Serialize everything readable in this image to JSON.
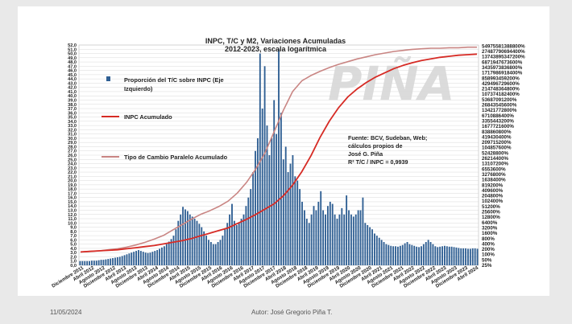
{
  "footer": {
    "date": "11/05/2024",
    "author": "Autor: José Gregorio Piña T."
  },
  "watermark": "PIÑA",
  "colors": {
    "bars": "#2f5f93",
    "inpc": "#d62b25",
    "parallel": "#c98583",
    "grid": "#cfcfcf",
    "watermark": "#d8d8d8"
  },
  "chart_data": {
    "type": "bar",
    "title": "INPC, T/C y M2, Variaciones Acumuladas",
    "subtitle": "2012-2023, escala logarítmica",
    "left_axis": {
      "min": 0,
      "max": 52,
      "step": 1,
      "tick_labels": [
        "0,0",
        "1,0",
        "2,0",
        "3,0",
        "4,0",
        "5,0",
        "6,0",
        "7,0",
        "8,0",
        "9,0",
        "10,0",
        "11,0",
        "12,0",
        "13,0",
        "14,0",
        "15,0",
        "16,0",
        "17,0",
        "18,0",
        "19,0",
        "20,0",
        "21,0",
        "22,0",
        "23,0",
        "24,0",
        "25,0",
        "26,0",
        "27,0",
        "28,0",
        "29,0",
        "30,0",
        "31,0",
        "32,0",
        "33,0",
        "34,0",
        "35,0",
        "36,0",
        "37,0",
        "38,0",
        "39,0",
        "40,0",
        "41,0",
        "42,0",
        "43,0",
        "44,0",
        "45,0",
        "46,0",
        "47,0",
        "48,0",
        "49,0",
        "50,0",
        "51,0",
        "52,0"
      ]
    },
    "right_axis": {
      "scale": "log2",
      "tick_labels": [
        "25%",
        "50%",
        "100%",
        "200%",
        "400%",
        "800%",
        "1600%",
        "3200%",
        "6400%",
        "12800%",
        "25600%",
        "51200%",
        "102400%",
        "204800%",
        "409600%",
        "819200%",
        "1638400%",
        "3276800%",
        "6553600%",
        "13107200%",
        "26214400%",
        "52428800%",
        "104857600%",
        "209715200%",
        "419430400%",
        "838860800%",
        "1677721600%",
        "3355443200%",
        "6710886400%",
        "13421772800%",
        "26843545600%",
        "53687091200%",
        "107374182400%",
        "214748364800%",
        "429496729600%",
        "858993459200%",
        "1717986918400%",
        "3435973836800%",
        "6871947673600%",
        "13743895347200%",
        "27487790694400%",
        "54975581388800%"
      ]
    },
    "x_labels": [
      "Diciembre 2011",
      "Abril 2012",
      "Agosto 2012",
      "Diciembre 2012",
      "Abril 2013",
      "Agosto 2013",
      "Diciembre 2013",
      "Abril 2014",
      "Agosto 2014",
      "Diciembre 2014",
      "Abril 2015",
      "Agosto 2015",
      "Diciembre 2015",
      "Abril 2016",
      "Agosto 2016",
      "Diciembre 2016",
      "Abril 2017",
      "Agosto 2017",
      "Diciembre 2017",
      "Abril 2018",
      "Agosto 2018",
      "Diciembre 2018",
      "Abril 2019",
      "Agosto 2019",
      "Diciembre 2019",
      "Abril 2020",
      "Agosto 2020",
      "Diciembre 2020",
      "Abril 2021",
      "Agosto 2021",
      "Diciembre 2021",
      "Abril 2022",
      "Agosto 2022",
      "Diciembre 2022",
      "Abril 2023",
      "Agosto 2023",
      "Diciembre 2023",
      "Abril 2024"
    ],
    "annotation": [
      "Fuente: BCV, Sudeban, Web;",
      "cálculos propios de",
      "José G. Piña",
      "R² T/C / INPC = 0,9939"
    ],
    "series": [
      {
        "name": "Proporción del T/C sobre INPC (Eje Izquierdo)",
        "type": "bar",
        "axis": "left",
        "values": [
          1.0,
          1.0,
          1.0,
          1.0,
          1.0,
          1.1,
          1.1,
          1.1,
          1.2,
          1.3,
          1.3,
          1.4,
          1.5,
          1.6,
          1.7,
          1.8,
          1.9,
          2.0,
          2.2,
          2.4,
          2.6,
          2.8,
          3.0,
          3.2,
          3.4,
          3.6,
          3.4,
          3.2,
          3.0,
          2.9,
          3.0,
          3.2,
          3.4,
          3.6,
          3.9,
          4.2,
          4.5,
          5.0,
          5.6,
          6.2,
          7.0,
          8.5,
          10.5,
          12.0,
          13.8,
          13.2,
          12.8,
          12.0,
          11.5,
          11.0,
          10.5,
          9.8,
          9.0,
          8.0,
          7.0,
          6.0,
          5.5,
          5.0,
          5.0,
          5.5,
          6.0,
          7.0,
          8.5,
          10.0,
          12.0,
          14.5,
          10.5,
          9.5,
          10.0,
          11.0,
          12.0,
          14.0,
          16.0,
          18.0,
          22.0,
          27.0,
          30.0,
          50.0,
          37.0,
          47.0,
          33.0,
          26.0,
          30.0,
          39.0,
          31.0,
          51.0,
          36.0,
          25.0,
          28.0,
          22.0,
          24.0,
          26.0,
          21.0,
          20.0,
          18.0,
          15.0,
          13.0,
          11.0,
          10.0,
          12.0,
          14.0,
          13.0,
          15.0,
          17.5,
          13.0,
          12.0,
          14.0,
          15.0,
          14.5,
          12.0,
          11.0,
          12.0,
          13.5,
          12.0,
          16.5,
          13.0,
          12.0,
          11.5,
          12.0,
          13.0,
          13.0,
          16.0,
          10.0,
          9.5,
          9.0,
          8.5,
          7.5,
          7.0,
          6.5,
          6.0,
          5.5,
          5.0,
          4.8,
          4.6,
          4.5,
          4.5,
          4.4,
          4.6,
          4.8,
          5.2,
          5.5,
          5.0,
          4.8,
          4.6,
          4.4,
          4.3,
          4.5,
          5.0,
          5.5,
          6.0,
          5.5,
          5.0,
          4.5,
          4.3,
          4.4,
          4.5,
          4.6,
          4.5,
          4.4,
          4.4,
          4.3,
          4.2,
          4.1,
          4.0,
          4.0,
          4.0,
          3.9,
          3.9,
          4.0,
          4.0,
          3.9
        ]
      },
      {
        "name": "INPC Acumulado",
        "type": "line",
        "axis": "right",
        "values": [
          2.5,
          2.6,
          2.7,
          2.8,
          2.9,
          3.1,
          3.3,
          3.5,
          3.7,
          4.0,
          4.3,
          4.6,
          5.0,
          5.5,
          6.0,
          6.5,
          7.0,
          7.8,
          8.6,
          9.5,
          10.5,
          11.5,
          13.0,
          15.0,
          17.5,
          20.5,
          24.0,
          27.0,
          29.5,
          31.5,
          33.0,
          34.2,
          35.2,
          36.0,
          36.8,
          37.4,
          37.9,
          38.3,
          38.6,
          38.9,
          39.1,
          39.3,
          39.4,
          39.5
        ]
      },
      {
        "name": "Tipo de Cambio Paralelo Acumulado",
        "type": "line",
        "axis": "right",
        "values": [
          2.5,
          2.6,
          2.7,
          2.9,
          3.1,
          3.4,
          3.8,
          4.3,
          4.9,
          5.6,
          6.6,
          7.6,
          8.6,
          9.5,
          10.2,
          11.0,
          12.0,
          13.5,
          15.5,
          18.0,
          21.0,
          25.0,
          29.0,
          32.5,
          34.5,
          35.5,
          36.3,
          37.0,
          37.6,
          38.1,
          38.6,
          39.0,
          39.4,
          39.7,
          40.0,
          40.2,
          40.4,
          40.5,
          40.6,
          40.6,
          40.7,
          40.7,
          40.8,
          40.8
        ]
      }
    ]
  }
}
